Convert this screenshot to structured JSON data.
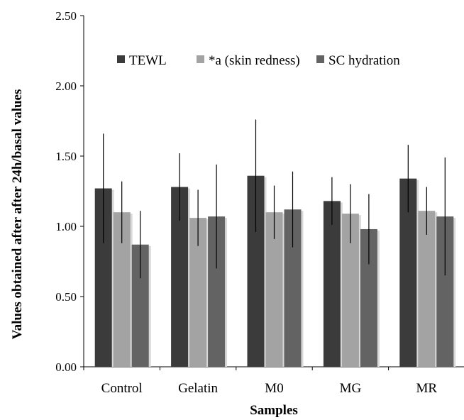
{
  "chart_data": {
    "type": "bar",
    "title": "",
    "xlabel": "Samples",
    "ylabel": "Values obtained after after 24h/basal values",
    "ylim": [
      0,
      2.5
    ],
    "yticks": [
      "0.00",
      "0.50",
      "1.00",
      "1.50",
      "2.00",
      "2.50"
    ],
    "grid": false,
    "legend_position": "top",
    "categories": [
      "Control",
      "Gelatin",
      "M0",
      "MG",
      "MR"
    ],
    "series": [
      {
        "name": "TEWL",
        "color": "#3b3b3b",
        "values": [
          1.27,
          1.28,
          1.36,
          1.18,
          1.34
        ],
        "errors": [
          0.39,
          0.24,
          0.4,
          0.17,
          0.24
        ]
      },
      {
        "name": "*a (skin redness)",
        "color": "#a3a3a3",
        "values": [
          1.1,
          1.06,
          1.1,
          1.09,
          1.11
        ],
        "errors": [
          0.22,
          0.2,
          0.19,
          0.21,
          0.17
        ]
      },
      {
        "name": "SC hydration",
        "color": "#636363",
        "values": [
          0.87,
          1.07,
          1.12,
          0.98,
          1.07
        ],
        "errors": [
          0.24,
          0.37,
          0.27,
          0.25,
          0.42
        ]
      }
    ]
  }
}
